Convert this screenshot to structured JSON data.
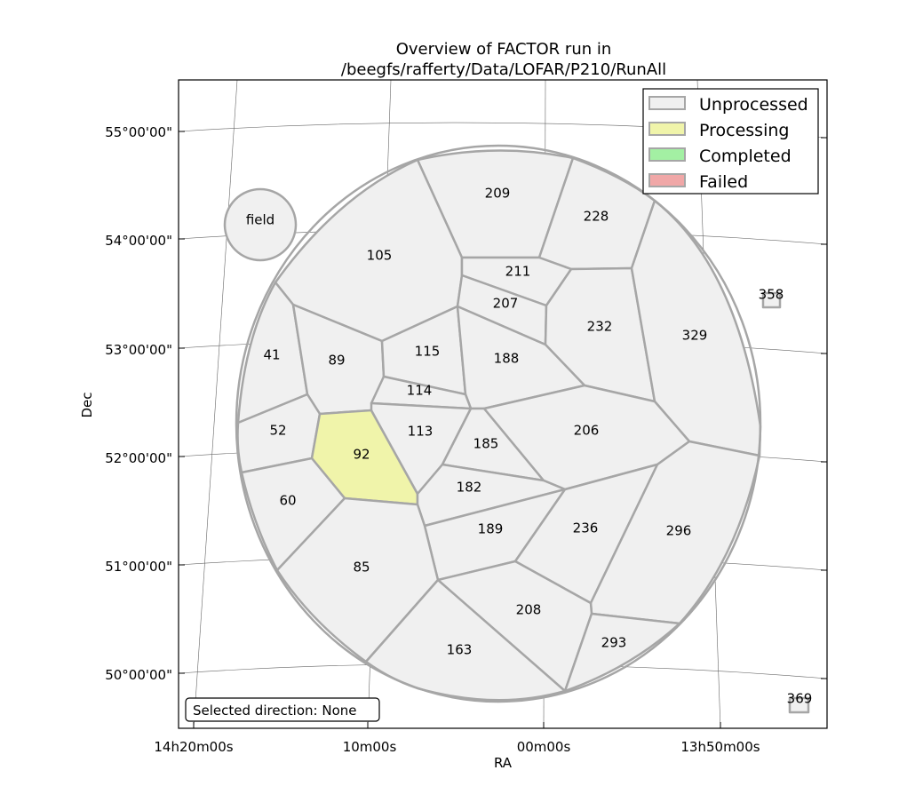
{
  "title": {
    "line1": "Overview of FACTOR run in",
    "line2": "/beegfs/rafferty/Data/LOFAR/P210/RunAll"
  },
  "axes": {
    "xlabel": "RA",
    "ylabel": "Dec",
    "xticks": [
      "14h20m00s",
      "10m00s",
      "00m00s",
      "13h50m00s"
    ],
    "yticks": [
      "55°00'00\"",
      "54°00'00\"",
      "53°00'00\"",
      "52°00'00\"",
      "51°00'00\"",
      "50°00'00\""
    ]
  },
  "legend": {
    "items": [
      {
        "label": "Unprocessed",
        "color": "#f0f0f0"
      },
      {
        "label": "Processing",
        "color": "#f0f4aa"
      },
      {
        "label": "Completed",
        "color": "#a3f0a3"
      },
      {
        "label": "Failed",
        "color": "#f0a7a7"
      }
    ]
  },
  "status": {
    "selected_direction": "Selected direction: None"
  },
  "field_label": "field",
  "colors": {
    "unprocessed": "#f0f0f0",
    "processing": "#f0f4aa",
    "edge": "#a6a6a6"
  },
  "directions": [
    {
      "name": "209",
      "state": "unprocessed"
    },
    {
      "name": "228",
      "state": "unprocessed"
    },
    {
      "name": "105",
      "state": "unprocessed"
    },
    {
      "name": "211",
      "state": "unprocessed"
    },
    {
      "name": "207",
      "state": "unprocessed"
    },
    {
      "name": "232",
      "state": "unprocessed"
    },
    {
      "name": "329",
      "state": "unprocessed"
    },
    {
      "name": "41",
      "state": "unprocessed"
    },
    {
      "name": "89",
      "state": "unprocessed"
    },
    {
      "name": "115",
      "state": "unprocessed"
    },
    {
      "name": "188",
      "state": "unprocessed"
    },
    {
      "name": "114",
      "state": "unprocessed"
    },
    {
      "name": "52",
      "state": "unprocessed"
    },
    {
      "name": "92",
      "state": "processing"
    },
    {
      "name": "113",
      "state": "unprocessed"
    },
    {
      "name": "185",
      "state": "unprocessed"
    },
    {
      "name": "206",
      "state": "unprocessed"
    },
    {
      "name": "60",
      "state": "unprocessed"
    },
    {
      "name": "182",
      "state": "unprocessed"
    },
    {
      "name": "189",
      "state": "unprocessed"
    },
    {
      "name": "236",
      "state": "unprocessed"
    },
    {
      "name": "296",
      "state": "unprocessed"
    },
    {
      "name": "85",
      "state": "unprocessed"
    },
    {
      "name": "208",
      "state": "unprocessed"
    },
    {
      "name": "163",
      "state": "unprocessed"
    },
    {
      "name": "293",
      "state": "unprocessed"
    },
    {
      "name": "358",
      "state": "unprocessed"
    },
    {
      "name": "369",
      "state": "unprocessed"
    }
  ]
}
